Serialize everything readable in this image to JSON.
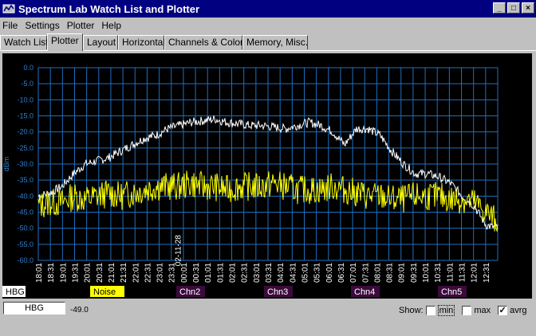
{
  "window": {
    "title": "Spectrum Lab  Watch List and Plotter"
  },
  "menu": [
    "File",
    "Settings",
    "Plotter",
    "Help"
  ],
  "tabs": [
    "Watch List",
    "Plotter",
    "Layout",
    "Horizontal",
    "Channels & Colors",
    "Memory, Misc."
  ],
  "active_tab": "Plotter",
  "chart_data": {
    "type": "line",
    "ylabel": "dBm",
    "ylim": [
      -60,
      0
    ],
    "yticks": [
      "0.0",
      "-5.0",
      "-10.0",
      "-15.0",
      "-20.0",
      "-25.0",
      "-30.0",
      "-35.0",
      "-40.0",
      "-45.0",
      "-50.0",
      "-55.0",
      "-60.0"
    ],
    "xticks": [
      "18:01",
      "18:31",
      "19:01",
      "19:31",
      "20:01",
      "20:31",
      "21:01",
      "21:31",
      "22:01",
      "22:31",
      "23:01",
      "23:31",
      "00:01",
      "00:31",
      "01:01",
      "01:31",
      "02:01",
      "02:31",
      "03:01",
      "03:31",
      "04:01",
      "04:31",
      "05:01",
      "05:31",
      "06:01",
      "06:31",
      "07:01",
      "07:31",
      "08:01",
      "08:31",
      "09:01",
      "09:31",
      "10:01",
      "10:31",
      "11:01",
      "11:31",
      "12:01",
      "12:31"
    ],
    "date_marker": "02-11-28",
    "grid": true,
    "series": [
      {
        "name": "HBG",
        "color": "#ffffff",
        "x": [
          0,
          1,
          2,
          3,
          4,
          5,
          6,
          7,
          8,
          9,
          10,
          11,
          12,
          13,
          14,
          15,
          16,
          17,
          18,
          19,
          20,
          21,
          22,
          23,
          24,
          25,
          26,
          27,
          28,
          29,
          30,
          31,
          32,
          33,
          34,
          35,
          36,
          37,
          38,
          39
        ],
        "values": [
          -40,
          -39,
          -37,
          -33,
          -30,
          -29,
          -28,
          -26,
          -24,
          -22,
          -21,
          -19,
          -18,
          -17,
          -16.5,
          -16,
          -17,
          -17.5,
          -18,
          -18,
          -18.5,
          -19,
          -18,
          -17,
          -18,
          -20,
          -24,
          -19,
          -19,
          -21,
          -26,
          -30,
          -33,
          -33,
          -34,
          -36,
          -40,
          -43,
          -49,
          -50
        ]
      },
      {
        "name": "Noise",
        "color": "#ffff00",
        "x": [
          0,
          1,
          2,
          3,
          4,
          5,
          6,
          7,
          8,
          9,
          10,
          11,
          12,
          13,
          14,
          15,
          16,
          17,
          18,
          19,
          20,
          21,
          22,
          23,
          24,
          25,
          26,
          27,
          28,
          29,
          30,
          31,
          32,
          33,
          34,
          35,
          36,
          37,
          38,
          39
        ],
        "values": [
          -43,
          -42,
          -42,
          -40,
          -41,
          -40,
          -39,
          -40,
          -39,
          -38,
          -37,
          -37,
          -37,
          -36,
          -37,
          -37,
          -38,
          -37,
          -37,
          -37,
          -36,
          -37,
          -38,
          -38,
          -38,
          -37,
          -38,
          -39,
          -40,
          -40,
          -41,
          -41,
          -40,
          -40,
          -40,
          -41,
          -41,
          -42,
          -45,
          -48
        ]
      }
    ]
  },
  "legend": [
    {
      "label": "HBG",
      "bg": "#ffffff",
      "fg": "#000000"
    },
    {
      "label": "Noise",
      "bg": "#ffff00",
      "fg": "#000000"
    },
    {
      "label": "Chn2",
      "bg": "#3c0a3c",
      "fg": "#ffffff"
    },
    {
      "label": "Chn3",
      "bg": "#3c0a3c",
      "fg": "#ffffff"
    },
    {
      "label": "Chn4",
      "bg": "#3c0a3c",
      "fg": "#ffffff"
    },
    {
      "label": "Chn5",
      "bg": "#3c0a3c",
      "fg": "#ffffff"
    }
  ],
  "footer": {
    "channel": "HBG",
    "value": "-49.0",
    "show_label": "Show:",
    "min_label": "min",
    "max_label": "max",
    "avrg_label": "avrg",
    "avrg_checked": true
  },
  "colors": {
    "grid": "#1f6fbf",
    "axis_text": "#2f7fd0",
    "background": "#000000"
  }
}
